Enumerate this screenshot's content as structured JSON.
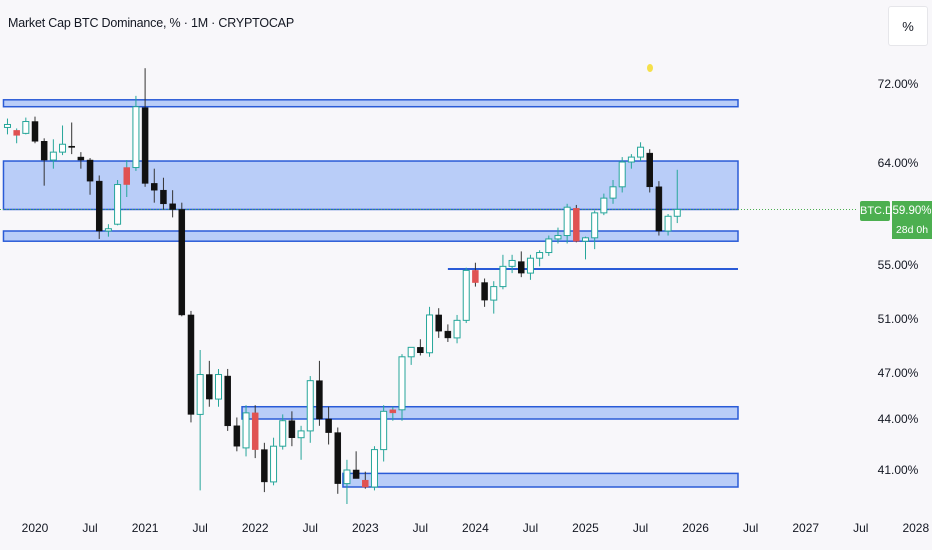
{
  "header": {
    "title": "Market Cap BTC Dominance, % · 1M · CRYPTOCAP",
    "scale_mode": "%"
  },
  "badges": {
    "symbol": "BTC.D",
    "price": "59.90%",
    "countdown": "28d 0h"
  },
  "colors": {
    "up": "#26a69a",
    "down": "#111111",
    "highlight": "#e05252",
    "zone_fill": "#a9c2f7",
    "zone_border": "#2a5bd7",
    "badge": "#4caf50",
    "marker": "#f5e04a"
  },
  "chart_data": {
    "type": "candlestick",
    "title": "Market Cap BTC Dominance, % · 1M · CRYPTOCAP",
    "y_tick_labels": [
      "72.00%",
      "64.00%",
      "55.00%",
      "51.00%",
      "47.00%",
      "44.00%",
      "41.00%"
    ],
    "y_tick_values": [
      72,
      64,
      55,
      51,
      47,
      44,
      41
    ],
    "x_tick_labels": [
      "2020",
      "Jul",
      "2021",
      "Jul",
      "2022",
      "Jul",
      "2023",
      "Jul",
      "2024",
      "Jul",
      "2025",
      "Jul",
      "2026",
      "Jul",
      "2027",
      "Jul",
      "2028"
    ],
    "x_tick_values": [
      "2020-01",
      "2020-07",
      "2021-01",
      "2021-07",
      "2022-01",
      "2022-07",
      "2023-01",
      "2023-07",
      "2024-01",
      "2024-07",
      "2025-01",
      "2025-07",
      "2026-01",
      "2026-07",
      "2027-01",
      "2027-07",
      "2028-01"
    ],
    "last_price": 59.9,
    "grid": false,
    "candles": [
      {
        "t": "2019-10",
        "o": 67.6,
        "h": 68.5,
        "l": 66.9,
        "c": 67.9
      },
      {
        "t": "2019-11",
        "o": 66.8,
        "h": 67.5,
        "l": 66.0,
        "c": 67.3,
        "highlight": true
      },
      {
        "t": "2019-12",
        "o": 67.0,
        "h": 68.6,
        "l": 66.9,
        "c": 68.2
      },
      {
        "t": "2020-01",
        "o": 68.2,
        "h": 68.7,
        "l": 66.0,
        "c": 66.2
      },
      {
        "t": "2020-02",
        "o": 66.2,
        "h": 66.5,
        "l": 62.0,
        "c": 64.3
      },
      {
        "t": "2020-03",
        "o": 64.3,
        "h": 66.4,
        "l": 63.5,
        "c": 65.1
      },
      {
        "t": "2020-04",
        "o": 65.1,
        "h": 67.8,
        "l": 64.8,
        "c": 65.9
      },
      {
        "t": "2020-05",
        "o": 65.7,
        "h": 68.1,
        "l": 64.9,
        "c": 65.6
      },
      {
        "t": "2020-06",
        "o": 64.6,
        "h": 65.1,
        "l": 63.5,
        "c": 64.3
      },
      {
        "t": "2020-07",
        "o": 64.3,
        "h": 64.5,
        "l": 61.2,
        "c": 62.4
      },
      {
        "t": "2020-08",
        "o": 62.4,
        "h": 62.9,
        "l": 57.3,
        "c": 58.0
      },
      {
        "t": "2020-09",
        "o": 58.0,
        "h": 58.6,
        "l": 57.5,
        "c": 58.2
      },
      {
        "t": "2020-10",
        "o": 58.6,
        "h": 62.5,
        "l": 58.5,
        "c": 62.1
      },
      {
        "t": "2020-11",
        "o": 62.1,
        "h": 64.3,
        "l": 61.0,
        "c": 63.6,
        "highlight": true
      },
      {
        "t": "2020-12",
        "o": 63.6,
        "h": 70.8,
        "l": 63.3,
        "c": 69.7
      },
      {
        "t": "2021-01",
        "o": 69.6,
        "h": 73.6,
        "l": 61.9,
        "c": 62.2
      },
      {
        "t": "2021-02",
        "o": 62.2,
        "h": 63.5,
        "l": 60.5,
        "c": 61.6
      },
      {
        "t": "2021-03",
        "o": 61.6,
        "h": 62.7,
        "l": 59.9,
        "c": 60.4
      },
      {
        "t": "2021-04",
        "o": 60.4,
        "h": 61.6,
        "l": 59.2,
        "c": 59.9
      },
      {
        "t": "2021-05",
        "o": 59.9,
        "h": 60.5,
        "l": 51.2,
        "c": 51.3
      },
      {
        "t": "2021-06",
        "o": 51.3,
        "h": 51.6,
        "l": 43.8,
        "c": 44.3
      },
      {
        "t": "2021-07",
        "o": 44.3,
        "h": 48.7,
        "l": 39.8,
        "c": 46.9
      },
      {
        "t": "2021-08",
        "o": 46.9,
        "h": 47.9,
        "l": 44.8,
        "c": 45.3
      },
      {
        "t": "2021-09",
        "o": 45.3,
        "h": 47.3,
        "l": 44.8,
        "c": 46.9
      },
      {
        "t": "2021-10",
        "o": 46.8,
        "h": 47.3,
        "l": 43.3,
        "c": 43.6
      },
      {
        "t": "2021-11",
        "o": 43.6,
        "h": 44.1,
        "l": 42.1,
        "c": 42.4
      },
      {
        "t": "2021-12",
        "o": 42.3,
        "h": 44.9,
        "l": 41.8,
        "c": 44.4
      },
      {
        "t": "2022-01",
        "o": 44.4,
        "h": 44.9,
        "l": 41.7,
        "c": 42.2,
        "highlight": true
      },
      {
        "t": "2022-02",
        "o": 42.2,
        "h": 42.6,
        "l": 39.7,
        "c": 40.3
      },
      {
        "t": "2022-03",
        "o": 40.3,
        "h": 42.9,
        "l": 40.1,
        "c": 42.4
      },
      {
        "t": "2022-04",
        "o": 42.4,
        "h": 44.3,
        "l": 42.2,
        "c": 43.9
      },
      {
        "t": "2022-05",
        "o": 43.9,
        "h": 44.5,
        "l": 42.4,
        "c": 42.9
      },
      {
        "t": "2022-06",
        "o": 42.9,
        "h": 43.6,
        "l": 41.6,
        "c": 43.3
      },
      {
        "t": "2022-07",
        "o": 43.3,
        "h": 46.8,
        "l": 42.6,
        "c": 46.5
      },
      {
        "t": "2022-08",
        "o": 46.5,
        "h": 47.9,
        "l": 43.6,
        "c": 44.0
      },
      {
        "t": "2022-09",
        "o": 44.0,
        "h": 44.8,
        "l": 42.5,
        "c": 43.2
      },
      {
        "t": "2022-10",
        "o": 43.2,
        "h": 43.5,
        "l": 39.6,
        "c": 40.2
      },
      {
        "t": "2022-11",
        "o": 40.2,
        "h": 41.6,
        "l": 39.0,
        "c": 41.0
      },
      {
        "t": "2022-12",
        "o": 41.0,
        "h": 42.1,
        "l": 40.6,
        "c": 40.5
      },
      {
        "t": "2023-01",
        "o": 40.4,
        "h": 40.9,
        "l": 39.9,
        "c": 40.0,
        "highlight": true
      },
      {
        "t": "2023-02",
        "o": 40.0,
        "h": 42.4,
        "l": 39.8,
        "c": 42.2
      },
      {
        "t": "2023-03",
        "o": 42.2,
        "h": 44.9,
        "l": 41.5,
        "c": 44.5
      },
      {
        "t": "2023-04",
        "o": 44.4,
        "h": 44.8,
        "l": 43.9,
        "c": 44.6,
        "highlight": true
      },
      {
        "t": "2023-05",
        "o": 44.6,
        "h": 48.4,
        "l": 43.9,
        "c": 48.2
      },
      {
        "t": "2023-06",
        "o": 48.2,
        "h": 48.9,
        "l": 47.6,
        "c": 48.9
      },
      {
        "t": "2023-07",
        "o": 48.9,
        "h": 49.5,
        "l": 48.3,
        "c": 48.5
      },
      {
        "t": "2023-08",
        "o": 48.5,
        "h": 51.9,
        "l": 48.2,
        "c": 51.3
      },
      {
        "t": "2023-09",
        "o": 51.3,
        "h": 51.8,
        "l": 49.6,
        "c": 50.1
      },
      {
        "t": "2023-10",
        "o": 50.1,
        "h": 50.6,
        "l": 49.3,
        "c": 49.6
      },
      {
        "t": "2023-11",
        "o": 49.6,
        "h": 51.3,
        "l": 49.2,
        "c": 50.9
      },
      {
        "t": "2023-12",
        "o": 50.9,
        "h": 54.8,
        "l": 50.7,
        "c": 54.6
      },
      {
        "t": "2024-01",
        "o": 54.6,
        "h": 55.2,
        "l": 53.4,
        "c": 53.7,
        "highlight": true
      },
      {
        "t": "2024-02",
        "o": 53.7,
        "h": 54.0,
        "l": 51.9,
        "c": 52.4
      },
      {
        "t": "2024-03",
        "o": 52.4,
        "h": 53.8,
        "l": 51.4,
        "c": 53.4
      },
      {
        "t": "2024-04",
        "o": 53.4,
        "h": 55.9,
        "l": 53.2,
        "c": 54.9
      },
      {
        "t": "2024-05",
        "o": 54.9,
        "h": 55.9,
        "l": 54.4,
        "c": 55.4
      },
      {
        "t": "2024-06",
        "o": 55.3,
        "h": 56.2,
        "l": 54.1,
        "c": 54.4
      },
      {
        "t": "2024-07",
        "o": 54.4,
        "h": 55.9,
        "l": 53.9,
        "c": 55.6
      },
      {
        "t": "2024-08",
        "o": 55.6,
        "h": 56.3,
        "l": 54.9,
        "c": 56.1
      },
      {
        "t": "2024-09",
        "o": 56.1,
        "h": 57.6,
        "l": 55.8,
        "c": 57.3
      },
      {
        "t": "2024-10",
        "o": 57.3,
        "h": 58.3,
        "l": 56.9,
        "c": 57.6
      },
      {
        "t": "2024-11",
        "o": 57.6,
        "h": 60.4,
        "l": 56.9,
        "c": 60.1
      },
      {
        "t": "2024-12",
        "o": 60.0,
        "h": 60.3,
        "l": 57.0,
        "c": 57.1,
        "highlight": true
      },
      {
        "t": "2025-01",
        "o": 57.1,
        "h": 57.5,
        "l": 55.5,
        "c": 57.4
      },
      {
        "t": "2025-02",
        "o": 57.4,
        "h": 59.8,
        "l": 56.4,
        "c": 59.6
      },
      {
        "t": "2025-03",
        "o": 59.6,
        "h": 61.3,
        "l": 59.4,
        "c": 60.9
      },
      {
        "t": "2025-04",
        "o": 60.9,
        "h": 62.5,
        "l": 60.4,
        "c": 61.9
      },
      {
        "t": "2025-05",
        "o": 61.9,
        "h": 64.6,
        "l": 61.4,
        "c": 64.1
      },
      {
        "t": "2025-06",
        "o": 64.1,
        "h": 64.9,
        "l": 63.5,
        "c": 64.6
      },
      {
        "t": "2025-07",
        "o": 64.6,
        "h": 66.1,
        "l": 64.2,
        "c": 65.6
      },
      {
        "t": "2025-08",
        "o": 65.0,
        "h": 65.4,
        "l": 61.4,
        "c": 61.9
      },
      {
        "t": "2025-09",
        "o": 61.9,
        "h": 62.4,
        "l": 57.6,
        "c": 58.0
      },
      {
        "t": "2025-10",
        "o": 58.0,
        "h": 59.5,
        "l": 57.6,
        "c": 59.3
      },
      {
        "t": "2025-11",
        "o": 59.3,
        "h": 63.4,
        "l": 58.7,
        "c": 59.9
      }
    ],
    "zones": [
      {
        "from": 69.7,
        "to": 70.4
      },
      {
        "from": 59.9,
        "to": 64.2
      },
      {
        "from": 57.1,
        "to": 58.0
      },
      {
        "from": 44.0,
        "to": 44.8
      },
      {
        "from": 40.0,
        "to": 40.8
      }
    ],
    "zone_extents": [
      {
        "start": "2019-10",
        "end": "2026-09"
      },
      {
        "start": "2019-10",
        "end": "2026-09"
      },
      {
        "start": "2019-10",
        "end": "2026-09"
      },
      {
        "start": "2021-12",
        "end": "2026-09"
      },
      {
        "start": "2022-11",
        "end": "2026-09"
      }
    ],
    "levels": [
      {
        "value": 54.7,
        "start": "2023-10",
        "end": "2026-09"
      }
    ]
  }
}
